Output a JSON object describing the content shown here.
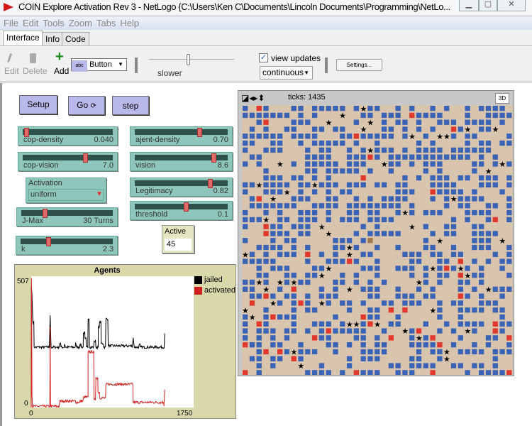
{
  "window": {
    "title": "COIN Explore Activation Rev 3 - NetLogo {C:\\Users\\Ken C\\Documents\\Lincoln Documents\\Programming\\NetLo..."
  },
  "menu": [
    "File",
    "Edit",
    "Tools",
    "Zoom",
    "Tabs",
    "Help"
  ],
  "tabs": [
    "Interface",
    "Info",
    "Code"
  ],
  "toolbar": {
    "edit": "Edit",
    "delete": "Delete",
    "add": "Add",
    "widget_type": "Button",
    "speed_label": "slower",
    "speed_fraction": 0.38,
    "view_updates": "view updates",
    "view_updates_checked": true,
    "update_mode": "continuous",
    "settings": "Settings..."
  },
  "buttons": {
    "setup": "Setup",
    "go": "Go",
    "step": "step"
  },
  "sliders": [
    {
      "label": "cop-density",
      "value": "0.040",
      "fraction": 0.02
    },
    {
      "label": "cop-vision",
      "value": "7.0",
      "fraction": 0.7
    },
    {
      "label": "ajent-density",
      "value": "0.70",
      "fraction": 0.7
    },
    {
      "label": "vision",
      "value": "8.6",
      "fraction": 0.86
    },
    {
      "label": "Legitimacy",
      "value": "0.82",
      "fraction": 0.82
    },
    {
      "label": "threshold",
      "value": "0.1",
      "fraction": 0.55
    },
    {
      "label": "J-Max",
      "value": "30 Turns",
      "fraction": 0.24
    },
    {
      "label": "k",
      "value": "2.3",
      "fraction": 0.29
    }
  ],
  "chooser": {
    "label": "Activation",
    "value": "uniform"
  },
  "monitor": {
    "label": "Active",
    "value": "45"
  },
  "view": {
    "ticks_label": "ticks: 1435",
    "btn3d": "3D",
    "colors": {
      "background": "#d9c4ad",
      "agent": "#3a63b5",
      "active": "#e0382c",
      "cop": "#000000"
    }
  },
  "chart_data": {
    "type": "line",
    "title": "Agents",
    "xlim": [
      0,
      1750
    ],
    "ylim": [
      0,
      507
    ],
    "xticks": [
      "0",
      "1750"
    ],
    "yticks": [
      "0",
      "507"
    ],
    "legend": "right",
    "series": [
      {
        "name": "jailed",
        "color": "#000000",
        "points": [
          [
            0,
            0
          ],
          [
            2,
            470
          ],
          [
            8,
            438
          ],
          [
            18,
            329
          ],
          [
            31,
            233
          ],
          [
            195,
            233
          ],
          [
            204,
            356
          ],
          [
            214,
            233
          ],
          [
            300,
            233
          ],
          [
            307,
            247
          ],
          [
            320,
            233
          ],
          [
            358,
            245
          ],
          [
            370,
            233
          ],
          [
            478,
            251
          ],
          [
            490,
            233
          ],
          [
            524,
            242
          ],
          [
            540,
            233
          ],
          [
            562,
            288
          ],
          [
            580,
            265
          ],
          [
            595,
            233
          ],
          [
            613,
            343
          ],
          [
            628,
            233
          ],
          [
            677,
            256
          ],
          [
            697,
            233
          ],
          [
            723,
            311
          ],
          [
            736,
            329
          ],
          [
            754,
            247
          ],
          [
            780,
            233
          ],
          [
            805,
            343
          ],
          [
            830,
            238
          ],
          [
            1090,
            233
          ],
          [
            1098,
            270
          ],
          [
            1110,
            233
          ],
          [
            1162,
            242
          ],
          [
            1175,
            233
          ],
          [
            1431,
            228
          ],
          [
            1438,
            286
          ]
        ]
      },
      {
        "name": "activated",
        "color": "#d02020",
        "points": [
          [
            0,
            0
          ],
          [
            2,
            500
          ],
          [
            5,
            400
          ],
          [
            8,
            60
          ],
          [
            12,
            5
          ],
          [
            200,
            5
          ],
          [
            204,
            310
          ],
          [
            208,
            5
          ],
          [
            307,
            25
          ],
          [
            478,
            20
          ],
          [
            524,
            25
          ],
          [
            562,
            40
          ],
          [
            613,
            215
          ],
          [
            677,
            30
          ],
          [
            697,
            115
          ],
          [
            720,
            59
          ],
          [
            736,
            37
          ],
          [
            805,
            90
          ],
          [
            1098,
            20
          ],
          [
            1430,
            5
          ],
          [
            1438,
            69
          ]
        ]
      }
    ]
  }
}
